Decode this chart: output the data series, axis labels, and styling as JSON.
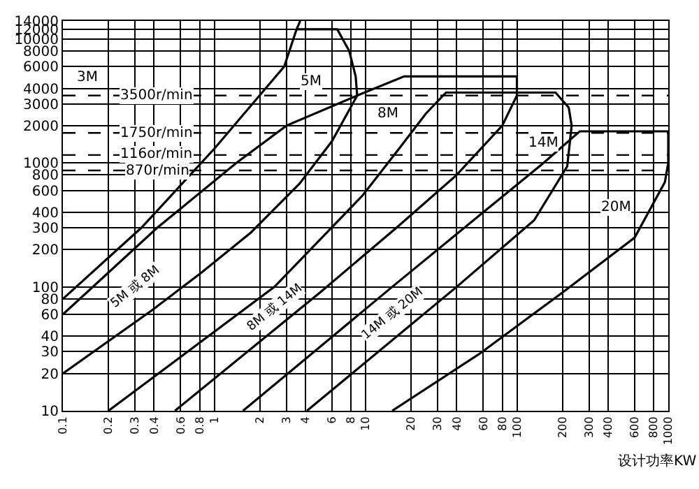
{
  "chart_data": {
    "type": "line",
    "xlabel": "设计功率KW",
    "log": "xy",
    "grid": true,
    "xlim": [
      0.1,
      1000
    ],
    "ylim": [
      10,
      14000
    ],
    "xticks": [
      0.1,
      0.2,
      0.3,
      0.4,
      0.6,
      0.8,
      1,
      2,
      3,
      4,
      6,
      8,
      10,
      20,
      30,
      40,
      60,
      80,
      100,
      200,
      300,
      400,
      600,
      800,
      1000
    ],
    "yticks": [
      10,
      20,
      30,
      40,
      60,
      80,
      100,
      200,
      300,
      400,
      600,
      800,
      1000,
      2000,
      3000,
      4000,
      6000,
      8000,
      10000,
      12000,
      14000
    ],
    "series": [
      {
        "color": "#000000",
        "x": [
          0.1,
          0.33,
          1,
          2.9,
          3.5,
          3.7
        ],
        "values": [
          80,
          300,
          1300,
          6000,
          12000,
          14000
        ]
      },
      {
        "color": "#000000",
        "x": [
          0.1,
          0.39,
          0.82,
          1.75,
          3.66,
          6,
          8.8,
          8.6,
          7.8,
          6.5,
          3.5
        ],
        "values": [
          20,
          65,
          130,
          275,
          680,
          1500,
          3500,
          5000,
          8000,
          12000,
          12000
        ]
      },
      {
        "color": "#000000",
        "x": [
          0.1,
          0.42,
          1.4,
          3,
          8.8,
          18,
          100,
          100,
          80,
          40,
          16,
          5,
          0.55
        ],
        "values": [
          60,
          300,
          1000,
          2000,
          3500,
          5000,
          5000,
          3500,
          2000,
          800,
          300,
          90,
          10
        ]
      },
      {
        "color": "#000000",
        "x": [
          0.2,
          2.5,
          9.6,
          17,
          25,
          34,
          180,
          220,
          230,
          215,
          130,
          40,
          4.1
        ],
        "values": [
          10,
          100,
          550,
          1350,
          2500,
          3700,
          3700,
          2800,
          2000,
          940,
          345,
          100,
          10
        ]
      },
      {
        "color": "#000000",
        "x": [
          1.55,
          15,
          60,
          150,
          260,
          1000,
          1000,
          950,
          600,
          200,
          57,
          15
        ],
        "values": [
          10,
          100,
          400,
          1000,
          1800,
          1800,
          1000,
          700,
          250,
          90,
          29,
          10
        ]
      }
    ],
    "ref_lines": [
      {
        "axis": "y",
        "value": 3500,
        "label": "3500r/min",
        "line_style": "dashed"
      },
      {
        "axis": "y",
        "value": 1750,
        "label": "1750r/min",
        "line_style": "dashed"
      },
      {
        "axis": "y",
        "value": 1160,
        "label": "116or/min",
        "line_style": "dashed"
      },
      {
        "axis": "y",
        "value": 870,
        "label": "870r/min",
        "line_style": "dashed"
      }
    ],
    "annotations": [
      "3M",
      "5M",
      "8M",
      "14M",
      "20M",
      "5M 或 8M",
      "8M 或 14M",
      "14M 或 20M"
    ]
  }
}
